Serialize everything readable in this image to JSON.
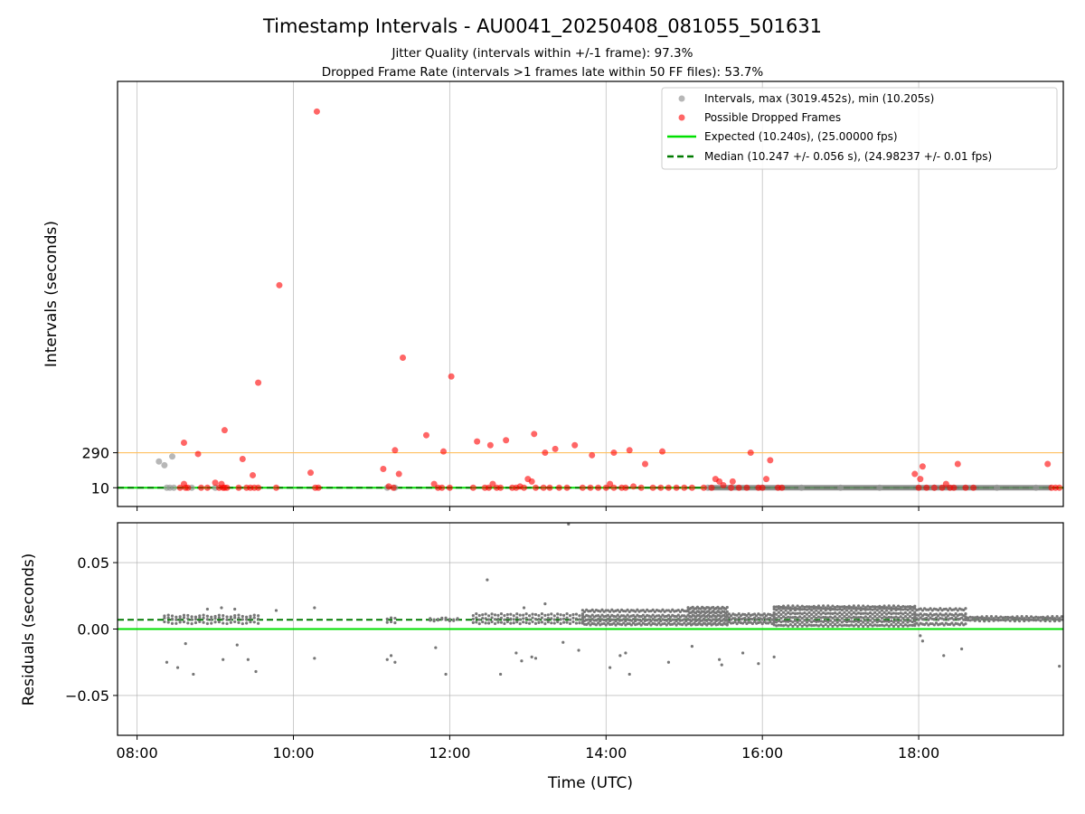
{
  "chart_data": [
    {
      "type": "scatter",
      "title": "Timestamp Intervals - AU0041_20250408_081055_501631",
      "subtitles": [
        "Jitter Quality (intervals within +/-1 frame): 97.3%",
        "Dropped Frame Rate (intervals >1 frames late within 50 FF files): 53.7%"
      ],
      "ylabel": "Intervals (seconds)",
      "xlabel": "",
      "xlim_hours": [
        7.75,
        19.85
      ],
      "ylim": [
        -140,
        3260
      ],
      "y_ticks": [
        10,
        290
      ],
      "y_tick_labels": [
        "10",
        "290"
      ],
      "x_ticks_hours": [
        8,
        10,
        12,
        14,
        16,
        18
      ],
      "grid": "vertical",
      "legend_position": "upper-right",
      "reference_lines": [
        {
          "name": "Expected (10.240s), (25.00000 fps)",
          "y": 10.24,
          "color": "#00e000",
          "style": "solid"
        },
        {
          "name": "Median (10.247 +/- 0.056 s), (24.98237 +/- 0.01 fps)",
          "y": 10.247,
          "color": "#007a00",
          "style": "dashed"
        },
        {
          "y": 290,
          "color": "#ffc060",
          "style": "solid"
        }
      ],
      "series": [
        {
          "name": "Intervals, max (3019.452s), min (10.205s)",
          "color": "#999999",
          "points": [
            [
              8.28,
              220
            ],
            [
              8.35,
              190
            ],
            [
              8.45,
              260
            ],
            [
              8.38,
              10
            ],
            [
              8.42,
              10
            ],
            [
              8.47,
              10
            ],
            [
              8.7,
              10
            ],
            [
              9.0,
              10
            ],
            [
              11.2,
              10
            ],
            [
              11.3,
              10
            ],
            [
              15.3,
              10
            ],
            [
              15.6,
              10
            ],
            [
              16.5,
              10
            ],
            [
              17.0,
              10
            ],
            [
              17.5,
              10
            ],
            [
              18.2,
              10
            ],
            [
              19.0,
              10
            ],
            [
              19.5,
              10
            ]
          ]
        },
        {
          "name": "Possible Dropped Frames",
          "color": "#ff0000",
          "points": [
            [
              8.55,
              10
            ],
            [
              8.6,
              40
            ],
            [
              8.62,
              10
            ],
            [
              8.65,
              10
            ],
            [
              8.6,
              370
            ],
            [
              8.78,
              280
            ],
            [
              8.82,
              10
            ],
            [
              8.9,
              10
            ],
            [
              9.0,
              50
            ],
            [
              9.05,
              10
            ],
            [
              9.08,
              40
            ],
            [
              9.1,
              10
            ],
            [
              9.12,
              10
            ],
            [
              9.15,
              10
            ],
            [
              9.12,
              470
            ],
            [
              9.35,
              240
            ],
            [
              9.3,
              10
            ],
            [
              9.4,
              10
            ],
            [
              9.45,
              10
            ],
            [
              9.5,
              10
            ],
            [
              9.48,
              110
            ],
            [
              9.55,
              10
            ],
            [
              9.55,
              850
            ],
            [
              9.78,
              10
            ],
            [
              9.82,
              1630
            ],
            [
              10.22,
              130
            ],
            [
              10.28,
              10
            ],
            [
              10.32,
              10
            ],
            [
              10.3,
              3019
            ],
            [
              11.15,
              160
            ],
            [
              11.22,
              20
            ],
            [
              11.28,
              10
            ],
            [
              11.3,
              310
            ],
            [
              11.35,
              120
            ],
            [
              11.4,
              1050
            ],
            [
              11.7,
              430
            ],
            [
              11.8,
              40
            ],
            [
              11.85,
              10
            ],
            [
              11.9,
              10
            ],
            [
              11.92,
              300
            ],
            [
              12.02,
              900
            ],
            [
              12.0,
              10
            ],
            [
              12.3,
              10
            ],
            [
              12.35,
              380
            ],
            [
              12.45,
              10
            ],
            [
              12.5,
              10
            ],
            [
              12.52,
              350
            ],
            [
              12.55,
              40
            ],
            [
              12.6,
              10
            ],
            [
              12.65,
              10
            ],
            [
              12.72,
              390
            ],
            [
              12.8,
              10
            ],
            [
              12.85,
              10
            ],
            [
              12.9,
              20
            ],
            [
              12.95,
              10
            ],
            [
              13.0,
              80
            ],
            [
              13.05,
              60
            ],
            [
              13.08,
              440
            ],
            [
              13.1,
              10
            ],
            [
              13.2,
              10
            ],
            [
              13.22,
              290
            ],
            [
              13.28,
              10
            ],
            [
              13.35,
              320
            ],
            [
              13.4,
              10
            ],
            [
              13.5,
              10
            ],
            [
              13.6,
              350
            ],
            [
              13.7,
              10
            ],
            [
              13.8,
              10
            ],
            [
              13.82,
              270
            ],
            [
              13.9,
              10
            ],
            [
              14.0,
              10
            ],
            [
              14.05,
              40
            ],
            [
              14.1,
              10
            ],
            [
              14.1,
              290
            ],
            [
              14.2,
              10
            ],
            [
              14.25,
              10
            ],
            [
              14.3,
              310
            ],
            [
              14.35,
              20
            ],
            [
              14.45,
              10
            ],
            [
              14.5,
              200
            ],
            [
              14.6,
              10
            ],
            [
              14.7,
              10
            ],
            [
              14.72,
              300
            ],
            [
              14.8,
              10
            ],
            [
              14.9,
              10
            ],
            [
              15.0,
              10
            ],
            [
              15.1,
              10
            ],
            [
              15.25,
              10
            ],
            [
              15.35,
              10
            ],
            [
              15.4,
              80
            ],
            [
              15.45,
              60
            ],
            [
              15.5,
              30
            ],
            [
              15.6,
              10
            ],
            [
              15.62,
              60
            ],
            [
              15.7,
              10
            ],
            [
              15.8,
              10
            ],
            [
              15.85,
              290
            ],
            [
              15.95,
              10
            ],
            [
              16.0,
              10
            ],
            [
              16.05,
              80
            ],
            [
              16.1,
              230
            ],
            [
              16.2,
              10
            ],
            [
              16.25,
              10
            ],
            [
              17.95,
              120
            ],
            [
              18.0,
              10
            ],
            [
              18.02,
              80
            ],
            [
              18.05,
              180
            ],
            [
              18.1,
              10
            ],
            [
              18.2,
              10
            ],
            [
              18.3,
              10
            ],
            [
              18.35,
              40
            ],
            [
              18.4,
              10
            ],
            [
              18.45,
              10
            ],
            [
              18.5,
              200
            ],
            [
              18.6,
              10
            ],
            [
              18.7,
              10
            ],
            [
              19.65,
              200
            ],
            [
              19.7,
              10
            ],
            [
              19.75,
              10
            ],
            [
              19.8,
              10
            ]
          ]
        }
      ]
    },
    {
      "type": "scatter",
      "ylabel": "Residuals (seconds)",
      "xlabel": "Time (UTC)",
      "xlim_hours": [
        7.75,
        19.85
      ],
      "ylim": [
        -0.08,
        0.08
      ],
      "y_ticks": [
        0.05,
        0.0,
        -0.05
      ],
      "y_tick_labels": [
        "0.05",
        "0.00",
        "−0.05"
      ],
      "x_ticks_hours": [
        8,
        10,
        12,
        14,
        16,
        18
      ],
      "x_tick_labels": [
        "08:00",
        "10:00",
        "12:00",
        "14:00",
        "16:00",
        "18:00"
      ],
      "grid": "both",
      "reference_lines": [
        {
          "y": 0.0,
          "color": "#00e000",
          "style": "solid"
        },
        {
          "y": 0.007,
          "color": "#007a00",
          "style": "dashed"
        }
      ],
      "series": [
        {
          "color": "#777777",
          "points": [
            [
              8.38,
              -0.025
            ],
            [
              8.52,
              -0.029
            ],
            [
              8.62,
              -0.011
            ],
            [
              8.72,
              -0.034
            ],
            [
              8.9,
              0.015
            ],
            [
              9.08,
              0.016
            ],
            [
              9.1,
              -0.023
            ],
            [
              9.25,
              0.015
            ],
            [
              9.28,
              -0.012
            ],
            [
              9.42,
              -0.023
            ],
            [
              9.52,
              -0.032
            ],
            [
              9.78,
              0.014
            ],
            [
              10.27,
              0.016
            ],
            [
              10.27,
              -0.022
            ],
            [
              11.2,
              -0.023
            ],
            [
              11.25,
              -0.02
            ],
            [
              11.3,
              -0.025
            ],
            [
              11.82,
              -0.014
            ],
            [
              11.95,
              -0.034
            ],
            [
              12.48,
              0.037
            ],
            [
              12.65,
              -0.034
            ],
            [
              12.85,
              -0.018
            ],
            [
              12.92,
              -0.024
            ],
            [
              12.95,
              0.016
            ],
            [
              13.05,
              -0.021
            ],
            [
              13.1,
              -0.022
            ],
            [
              13.22,
              0.019
            ],
            [
              13.45,
              -0.01
            ],
            [
              13.52,
              0.079
            ],
            [
              13.65,
              -0.016
            ],
            [
              14.05,
              -0.029
            ],
            [
              14.18,
              -0.02
            ],
            [
              14.25,
              -0.018
            ],
            [
              14.3,
              -0.034
            ],
            [
              14.8,
              -0.025
            ],
            [
              15.1,
              -0.013
            ],
            [
              15.45,
              -0.023
            ],
            [
              15.48,
              -0.027
            ],
            [
              15.75,
              -0.018
            ],
            [
              15.95,
              -0.026
            ],
            [
              16.15,
              -0.021
            ],
            [
              18.02,
              -0.005
            ],
            [
              18.05,
              -0.009
            ],
            [
              18.32,
              -0.02
            ],
            [
              18.55,
              -0.015
            ],
            [
              19.8,
              -0.028
            ]
          ],
          "bands": [
            {
              "x_range": [
                8.35,
                9.55
              ],
              "values": [
                0.004,
                0.007,
                0.009
              ],
              "step": 0.05
            },
            {
              "x_range": [
                11.2,
                11.3
              ],
              "values": [
                0.004,
                0.007
              ],
              "step": 0.05
            },
            {
              "x_range": [
                11.75,
                12.1
              ],
              "values": [
                0.006,
                0.007
              ],
              "step": 0.05
            },
            {
              "x_range": [
                12.3,
                13.7
              ],
              "values": [
                0.004,
                0.007,
                0.01
              ],
              "step": 0.04
            },
            {
              "x_range": [
                13.7,
                15.05
              ],
              "values": [
                0.003,
                0.006,
                0.009,
                0.013
              ],
              "step": 0.025
            },
            {
              "x_range": [
                15.05,
                15.55
              ],
              "values": [
                0.003,
                0.006,
                0.009,
                0.012,
                0.015
              ],
              "step": 0.02
            },
            {
              "x_range": [
                15.55,
                16.15
              ],
              "values": [
                0.004,
                0.007,
                0.01
              ],
              "step": 0.025
            },
            {
              "x_range": [
                16.15,
                17.95
              ],
              "values": [
                0.002,
                0.005,
                0.008,
                0.011,
                0.014,
                0.016
              ],
              "step": 0.03
            },
            {
              "x_range": [
                17.95,
                18.6
              ],
              "values": [
                0.003,
                0.007,
                0.01,
                0.014
              ],
              "step": 0.025
            },
            {
              "x_range": [
                18.6,
                19.85
              ],
              "values": [
                0.006,
                0.008
              ],
              "step": 0.03
            }
          ]
        }
      ]
    }
  ]
}
